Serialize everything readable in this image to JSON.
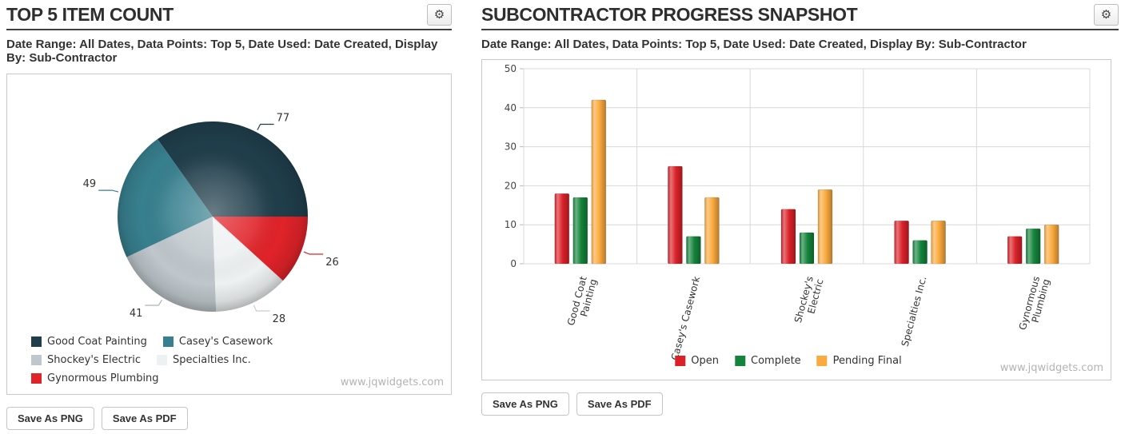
{
  "left_panel": {
    "title": "TOP 5 ITEM COUNT",
    "subtitle": "Date Range: All Dates, Data Points: Top 5, Date Used: Date Created, Display By: Sub-Contractor",
    "gear_icon": "⚙",
    "save_png": "Save As PNG",
    "save_pdf": "Save As PDF",
    "watermark": "www.jqwidgets.com"
  },
  "right_panel": {
    "title": "SUBCONTRACTOR PROGRESS SNAPSHOT",
    "subtitle": "Date Range: All Dates, Data Points: Top 5, Date Used: Date Created, Display By: Sub-Contractor",
    "gear_icon": "⚙",
    "save_png": "Save As PNG",
    "save_pdf": "Save As PDF",
    "watermark": "www.jqwidgets.com"
  },
  "chart_data": [
    {
      "type": "pie",
      "title": "TOP 5 ITEM COUNT",
      "labels": [
        "Good Coat Painting",
        "Casey's Casework",
        "Shockey's Electric",
        "Specialties Inc.",
        "Gynormous Plumbing"
      ],
      "values": [
        77,
        49,
        41,
        28,
        26
      ],
      "colors": [
        "#1f3d4a",
        "#38808f",
        "#bfc7cc",
        "#eef1f2",
        "#e02329"
      ],
      "label_line_colors": [
        "#1f3d4a",
        "#38808f",
        "#aab3b9",
        "#c6ccd0",
        "#e02329"
      ],
      "value_label_color": "#333333",
      "start_angle_deg": 0,
      "direction": "counterclockwise",
      "legend_position": "bottom-left"
    },
    {
      "type": "bar",
      "title": "SUBCONTRACTOR PROGRESS SNAPSHOT",
      "categories": [
        "Good Coat Painting",
        "Casey's Casework",
        "Shockey's Electric",
        "Specialties Inc.",
        "Gynormous Plumbing"
      ],
      "tick_label_lines": [
        [
          "Good Coat",
          "Painting"
        ],
        [
          "Casey's Casework"
        ],
        [
          "Shockey's",
          "Electric"
        ],
        [
          "Specialties Inc."
        ],
        [
          "Gynormous",
          "Plumbing"
        ]
      ],
      "series": [
        {
          "name": "Open",
          "color": "#da2128",
          "values": [
            18,
            25,
            14,
            11,
            7
          ]
        },
        {
          "name": "Complete",
          "color": "#14843c",
          "values": [
            17,
            7,
            8,
            6,
            9
          ]
        },
        {
          "name": "Pending Final",
          "color": "#fbaa3e",
          "values": [
            42,
            17,
            19,
            11,
            10
          ]
        }
      ],
      "ylim": [
        0,
        50
      ],
      "yticks": [
        0,
        10,
        20,
        30,
        40,
        50
      ],
      "grid": true,
      "legend_position": "bottom-center"
    }
  ]
}
